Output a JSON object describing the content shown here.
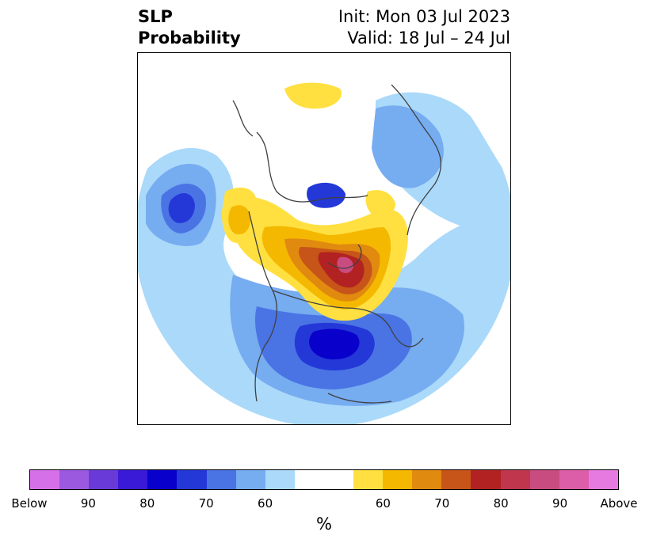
{
  "header": {
    "title_line1": "SLP",
    "title_line2": "Probability",
    "init_text": "Init: Mon 03 Jul 2023",
    "valid_text": "Valid: 18 Jul – 24 Jul"
  },
  "colorbar": {
    "colors": [
      "#d670e8",
      "#9b59e0",
      "#6a3ad8",
      "#3a1ad6",
      "#0a00cc",
      "#2438d8",
      "#4a74e4",
      "#76acf0",
      "#aad9fa",
      "#ffffff",
      "#ffffff",
      "#ffe040",
      "#f5b800",
      "#e08a10",
      "#c75418",
      "#b22222",
      "#c0364c",
      "#c84c80",
      "#dc5ea8",
      "#e67ae0"
    ],
    "tick_labels": [
      "Below",
      "90",
      "80",
      "70",
      "60",
      "60",
      "70",
      "80",
      "90",
      "Above"
    ],
    "unit": "%"
  },
  "map": {
    "colors": {
      "below_light": "#aad9fa",
      "below_mid": "#76acf0",
      "below_strong": "#4a74e4",
      "below_deep": "#2438d8",
      "below_max": "#0a00cc",
      "above_light": "#ffe040",
      "above_mid": "#f5b800",
      "above_orange": "#e08a10",
      "above_rust": "#c75418",
      "above_red": "#b22222",
      "above_pink": "#c84c80",
      "coast": "#404040"
    }
  }
}
